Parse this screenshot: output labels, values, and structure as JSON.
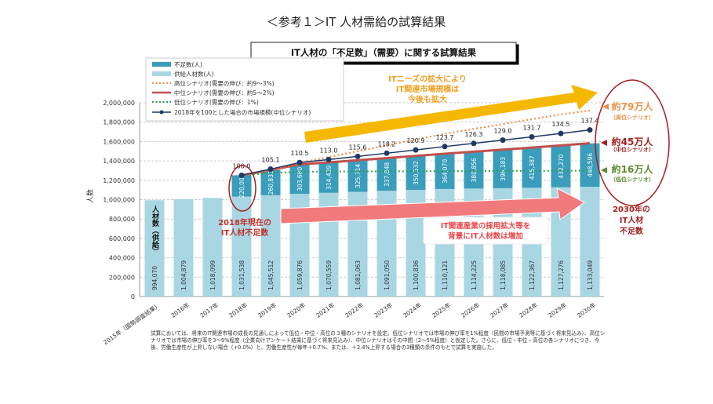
{
  "page_title": "＜参考１＞IT 人材需給の試算結果",
  "chart_title": "IT人材の「不足数」（需要）に関する試算結果",
  "chart_data": {
    "type": "bar",
    "stacked": true,
    "ylabel": "人数",
    "ylim": [
      0,
      2000000
    ],
    "yticks": [
      "0",
      "200,000",
      "400,000",
      "600,000",
      "800,000",
      "1,000,000",
      "1,200,000",
      "1,400,000",
      "1,600,000",
      "1,800,000",
      "2,000,000"
    ],
    "grid": true,
    "legend_position": "top-left",
    "categories": [
      "2015年（国勢調査結果）",
      "2016年",
      "2017年",
      "2018年",
      "2019年",
      "2020年",
      "2021年",
      "2022年",
      "2023年",
      "2024年",
      "2025年",
      "2026年",
      "2027年",
      "2028年",
      "2029年",
      "2030年"
    ],
    "series": [
      {
        "name": "供給人材数(人)",
        "color": "#a9d6e3",
        "values": [
          994070,
          1004879,
          1018099,
          1031538,
          1045512,
          1059876,
          1070559,
          1081063,
          1091050,
          1100836,
          1110121,
          1114225,
          1118085,
          1122367,
          1127276,
          1133049
        ],
        "labels": [
          "994,070",
          "1,004,879",
          "1,018,099",
          "1,031,538",
          "1,045,512",
          "1,059,876",
          "1,070,559",
          "1,081,063",
          "1,091,050",
          "1,100,836",
          "1,110,121",
          "1,114,225",
          "1,118,085",
          "1,122,367",
          "1,127,276",
          "1,133,049"
        ]
      },
      {
        "name": "不足数(人)",
        "color": "#3a9dbb",
        "values": [
          null,
          null,
          null,
          220000,
          260835,
          303680,
          314439,
          325714,
          337848,
          350532,
          364070,
          380856,
          398183,
          415387,
          432270,
          448596
        ],
        "labels": [
          "",
          "",
          "",
          "220,000",
          "260,835",
          "303,680",
          "314,439",
          "325,714",
          "337,848",
          "350,532",
          "364,070",
          "380,856",
          "398,183",
          "415,387",
          "432,270",
          "448,596"
        ]
      }
    ],
    "lines": [
      {
        "name": "高位シナリオ(需要の伸び：約9～3%)",
        "color": "#e8914a",
        "style": "dotted",
        "values": [
          null,
          null,
          null,
          1251538,
          1310000,
          1380000,
          1440000,
          1500000,
          1560000,
          1620000,
          1680000,
          1730000,
          1780000,
          1830000,
          1880000,
          1920000
        ]
      },
      {
        "name": "中位シナリオ(需要の伸び：約5～2%)",
        "color": "#c0504d",
        "style": "solid"
      },
      {
        "name": "低位シナリオ(需要の伸び：1%)",
        "color": "#2e9e4f",
        "style": "dotted",
        "values": [
          null,
          null,
          null,
          1251538,
          1275000,
          1288000,
          1290000,
          1291000,
          1292000,
          1293000,
          1294000,
          1295000,
          1296000,
          1297000,
          1298000,
          1300000
        ]
      },
      {
        "name": "2018年を100とした場合の市場規模(中位シナリオ)",
        "color": "#1f3864",
        "style": "line-marker",
        "index_values": [
          null,
          null,
          null,
          100.0,
          105.1,
          110.5,
          113.0,
          115.6,
          118.2,
          120.9,
          123.7,
          126.3,
          129.0,
          131.7,
          134.5,
          137.4
        ],
        "index_labels": [
          "",
          "",
          "",
          "100.0",
          "105.1",
          "110.5",
          "113.0",
          "115.6",
          "118.2",
          "120.9",
          "123.7",
          "126.3",
          "129.0",
          "131.7",
          "134.5",
          "137.4"
        ]
      }
    ]
  },
  "annotations": {
    "first_bar_label": "人材数（供給）",
    "needs_growth": [
      "ITニーズの拡大により",
      "IT関連市場規模は",
      "今後も拡大"
    ],
    "supply_growth": [
      "IT関連産業の採用拡大等を",
      "背景にIT人材数は増加"
    ],
    "shortage_2018": [
      "2018年現在の",
      "IT人材不足数"
    ],
    "shortage_2030": [
      "2030年の",
      "IT人材",
      "不足数"
    ],
    "high": {
      "value": "約79万人",
      "label": "（高位シナリオ）",
      "color": "#e8914a"
    },
    "mid": {
      "value": "約45万人",
      "label": "（中位シナリオ）",
      "color": "#a32020"
    },
    "low": {
      "value": "約16万人",
      "label": "（低位シナリオ）",
      "color": "#5b8a2e"
    }
  },
  "footnote": "試算においては、将来のIT関連市場の成長の見通しによって低位・中位・高位の３種のシナリオを設定。低位シナリオでは市場の伸び率を1%程度（民間の市場予測等に基づく将来見込み）、高位シナリオでは市場の伸び率を3～9%程度（企業向けアンケート結果に基づく将来見込み）、中位シナリオはその中間（2～5%程度）と仮定した。さらに、低位・中位・高位の各シナリオにつき、今後、労働生産性が上昇しない場合（+0.0%）と、労働生産性が毎年＋0.7%、または、＋2.4%上昇する場合の3種類の条件のもとで試算を実施した。"
}
